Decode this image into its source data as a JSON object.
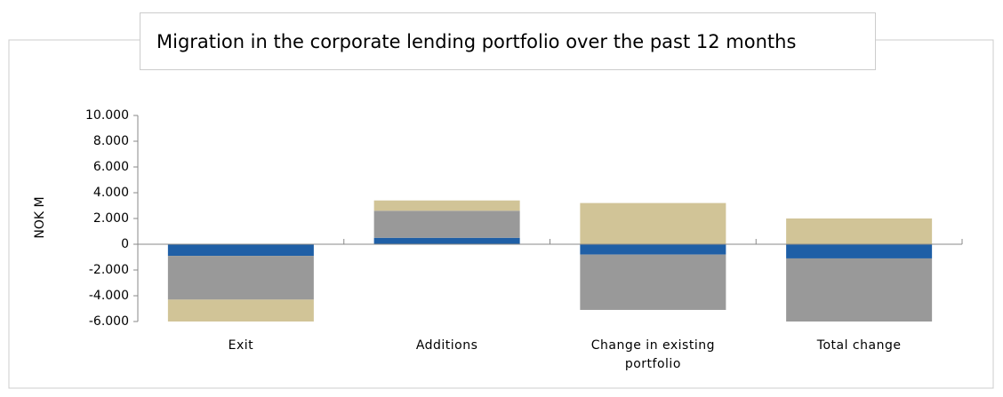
{
  "chart_data": {
    "type": "stacked_bar",
    "title": "Migration in the corporate lending portfolio over the past 12 months",
    "y_label": "NOK M",
    "categories": [
      "Exit",
      "Additions",
      "Change in existing portfolio",
      "Total change"
    ],
    "series": [
      {
        "color": "#1f5fa6",
        "values": [
          -900,
          500,
          -800,
          -1100
        ]
      },
      {
        "color": "#999999",
        "values": [
          -3400,
          2100,
          -4300,
          -4900
        ]
      },
      {
        "color": "#d1c497",
        "values": [
          -1700,
          800,
          3200,
          2000
        ]
      }
    ],
    "ylim": [
      -6000,
      10000
    ],
    "yticks": [
      {
        "value": 10000,
        "label": "10.000"
      },
      {
        "value": 8000,
        "label": "8.000"
      },
      {
        "value": 6000,
        "label": "6.000"
      },
      {
        "value": 4000,
        "label": "4.000"
      },
      {
        "value": 2000,
        "label": "2.000"
      },
      0,
      {
        "value": -2000,
        "label": "-2.000"
      },
      {
        "value": -4000,
        "label": "-4.000"
      },
      {
        "value": -6000,
        "label": "-6.000"
      }
    ]
  }
}
